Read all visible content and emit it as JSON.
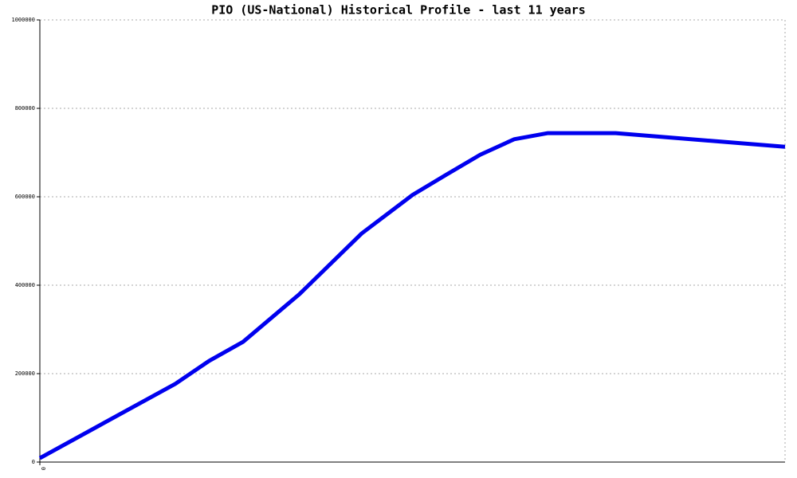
{
  "chart_data": {
    "type": "line",
    "title": "PIO (US-National) Historical Profile - last 11 years",
    "x": [
      0,
      24,
      30,
      36,
      46,
      57,
      66,
      72,
      78,
      84,
      90,
      102,
      132
    ],
    "values": [
      9000,
      177000,
      229000,
      272000,
      380000,
      517000,
      604000,
      650000,
      695000,
      730000,
      744000,
      744000,
      713000
    ],
    "color": "#0000ee",
    "xlim": [
      0,
      132
    ],
    "xticks": [
      0
    ],
    "ylim": [
      0,
      1000000
    ],
    "yticks": [
      0,
      200000,
      400000,
      600000,
      800000,
      1000000
    ],
    "grid": true
  }
}
